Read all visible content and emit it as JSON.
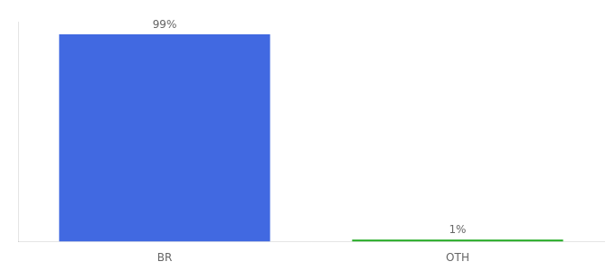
{
  "chart_data": {
    "type": "bar",
    "categories": [
      "BR",
      "OTH"
    ],
    "values": [
      99,
      1
    ],
    "value_labels": [
      "99%",
      "1%"
    ],
    "data_labels": true,
    "colors": [
      "#4169E1",
      "#22AA22"
    ],
    "ylim": [
      0,
      105
    ],
    "grid": false,
    "tick_labels": "x"
  }
}
